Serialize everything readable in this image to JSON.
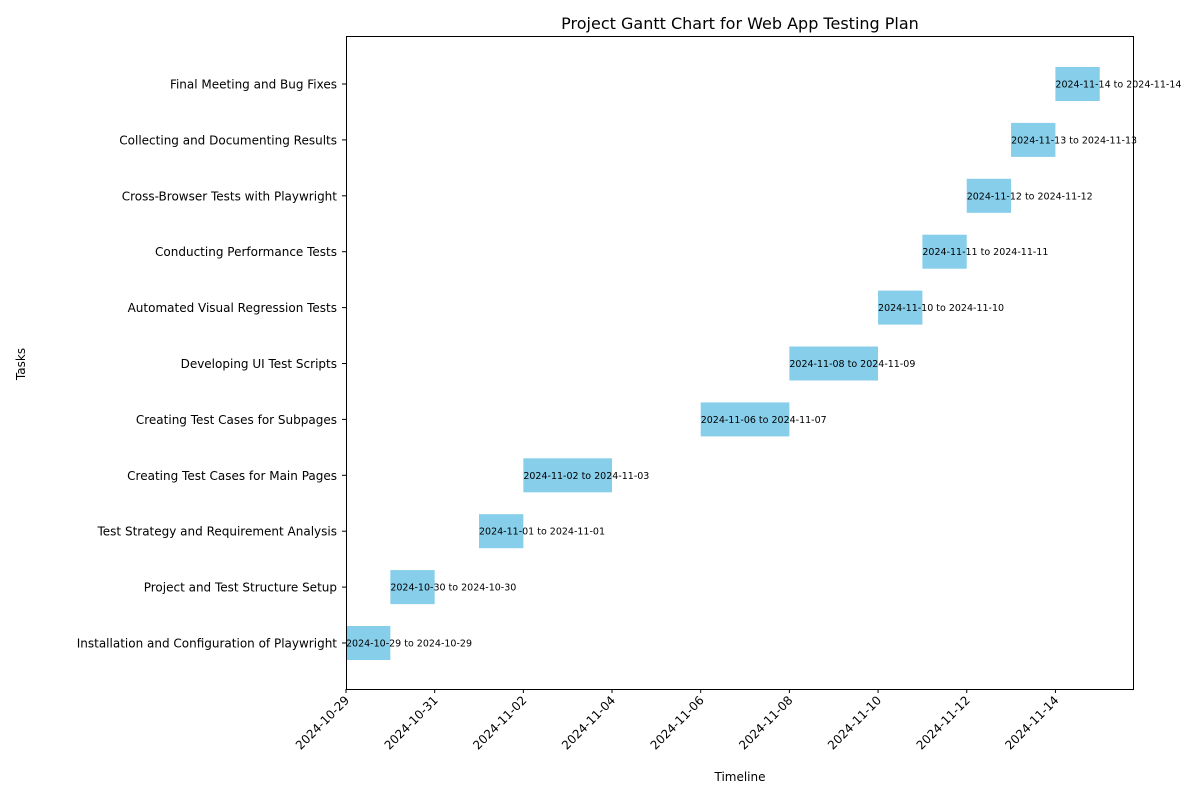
{
  "chart_data": {
    "type": "bar",
    "orientation": "horizontal",
    "title": "Project Gantt Chart for Web App Testing Plan",
    "xlabel": "Timeline",
    "ylabel": "Tasks",
    "bar_color": "#87ceeb",
    "grid": false,
    "legend": "none",
    "xlim": [
      "2024-10-29",
      "2024-11-15T18:00"
    ],
    "x_ticks": [
      "2024-10-29",
      "2024-10-31",
      "2024-11-02",
      "2024-11-04",
      "2024-11-06",
      "2024-11-08",
      "2024-11-10",
      "2024-11-12",
      "2024-11-14"
    ],
    "tasks": [
      {
        "name": "Installation and Configuration of Playwright",
        "start": "2024-10-29",
        "end": "2024-10-30",
        "label": "2024-10-29 to 2024-10-29"
      },
      {
        "name": "Project and Test Structure Setup",
        "start": "2024-10-30",
        "end": "2024-10-31",
        "label": "2024-10-30 to 2024-10-30"
      },
      {
        "name": "Test Strategy and Requirement Analysis",
        "start": "2024-11-01",
        "end": "2024-11-02",
        "label": "2024-11-01 to 2024-11-01"
      },
      {
        "name": "Creating Test Cases for Main Pages",
        "start": "2024-11-02",
        "end": "2024-11-04",
        "label": "2024-11-02 to 2024-11-03"
      },
      {
        "name": "Creating Test Cases for Subpages",
        "start": "2024-11-06",
        "end": "2024-11-08",
        "label": "2024-11-06 to 2024-11-07"
      },
      {
        "name": "Developing UI Test Scripts",
        "start": "2024-11-08",
        "end": "2024-11-10",
        "label": "2024-11-08 to 2024-11-09"
      },
      {
        "name": "Automated Visual Regression Tests",
        "start": "2024-11-10",
        "end": "2024-11-11",
        "label": "2024-11-10 to 2024-11-10"
      },
      {
        "name": "Conducting Performance Tests",
        "start": "2024-11-11",
        "end": "2024-11-12",
        "label": "2024-11-11 to 2024-11-11"
      },
      {
        "name": "Cross-Browser Tests with Playwright",
        "start": "2024-11-12",
        "end": "2024-11-13",
        "label": "2024-11-12 to 2024-11-12"
      },
      {
        "name": "Collecting and Documenting Results",
        "start": "2024-11-13",
        "end": "2024-11-14",
        "label": "2024-11-13 to 2024-11-13"
      },
      {
        "name": "Final Meeting and Bug Fixes",
        "start": "2024-11-14",
        "end": "2024-11-15",
        "label": "2024-11-14 to 2024-11-14"
      }
    ]
  }
}
